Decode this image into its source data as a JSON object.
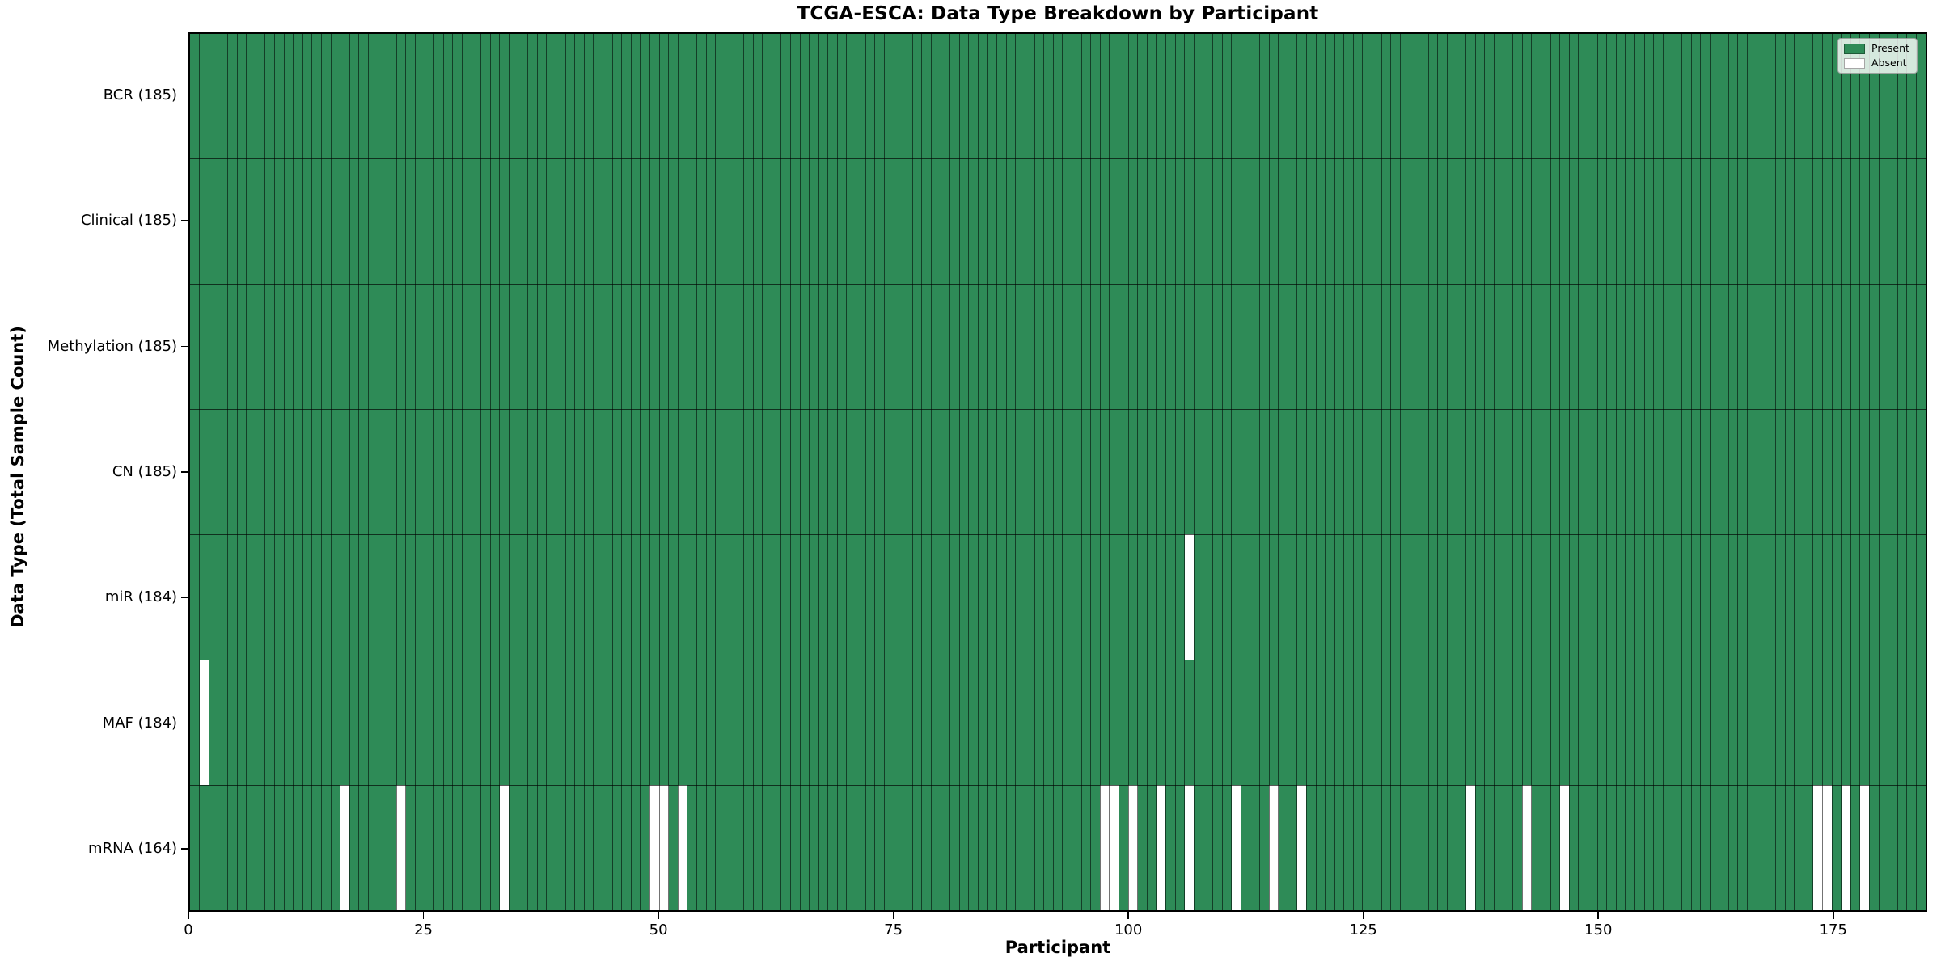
{
  "chart_data": {
    "type": "heatmap",
    "title": "TCGA-ESCA: Data Type Breakdown by Participant",
    "xlabel": "Participant",
    "ylabel": "Data Type (Total Sample Count)",
    "n_participants": 185,
    "x_ticks": [
      0,
      25,
      50,
      75,
      100,
      125,
      150,
      175
    ],
    "x_range": [
      0,
      185
    ],
    "grid": "cell-edges",
    "legend_position": "upper-right",
    "legend": [
      {
        "label": "Present",
        "color": "#2e8b57"
      },
      {
        "label": "Absent",
        "color": "#ffffff"
      }
    ],
    "colors": {
      "present": "#2e8b57",
      "absent": "#ffffff"
    },
    "rows": [
      {
        "label": "BCR (185)",
        "data_type": "BCR",
        "present_count": 185,
        "absent_participants": []
      },
      {
        "label": "Clinical (185)",
        "data_type": "Clinical",
        "present_count": 185,
        "absent_participants": []
      },
      {
        "label": "Methylation (185)",
        "data_type": "Methylation",
        "present_count": 185,
        "absent_participants": []
      },
      {
        "label": "CN (185)",
        "data_type": "CN",
        "present_count": 185,
        "absent_participants": []
      },
      {
        "label": "miR (184)",
        "data_type": "miR",
        "present_count": 184,
        "absent_participants": [
          106
        ]
      },
      {
        "label": "MAF (184)",
        "data_type": "MAF",
        "present_count": 184,
        "absent_participants": [
          1
        ]
      },
      {
        "label": "mRNA (164)",
        "data_type": "mRNA",
        "present_count": 164,
        "absent_participants": [
          16,
          22,
          33,
          49,
          50,
          52,
          97,
          98,
          100,
          103,
          106,
          111,
          115,
          118,
          136,
          142,
          146,
          173,
          174,
          176,
          178
        ]
      }
    ]
  }
}
